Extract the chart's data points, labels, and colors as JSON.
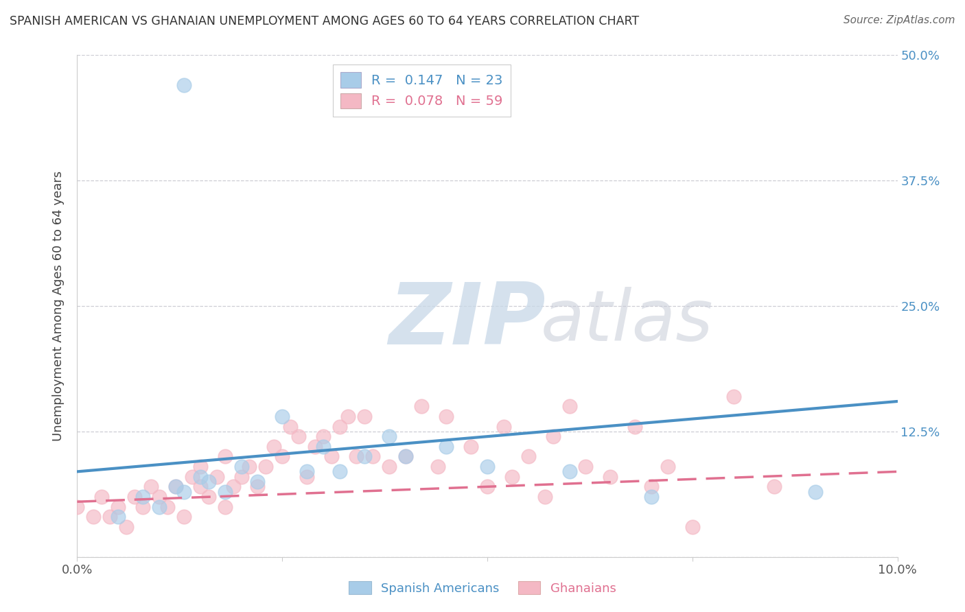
{
  "title": "SPANISH AMERICAN VS GHANAIAN UNEMPLOYMENT AMONG AGES 60 TO 64 YEARS CORRELATION CHART",
  "source": "Source: ZipAtlas.com",
  "ylabel": "Unemployment Among Ages 60 to 64 years",
  "xlim": [
    0.0,
    0.1
  ],
  "ylim": [
    0.0,
    0.5
  ],
  "xticks": [
    0.0,
    0.025,
    0.05,
    0.075,
    0.1
  ],
  "xticklabels": [
    "0.0%",
    "",
    "",
    "",
    "10.0%"
  ],
  "yticks": [
    0.0,
    0.125,
    0.25,
    0.375,
    0.5
  ],
  "yticklabels": [
    "",
    "12.5%",
    "25.0%",
    "37.5%",
    "50.0%"
  ],
  "spanish_R": 0.147,
  "spanish_N": 23,
  "ghanaian_R": 0.078,
  "ghanaian_N": 59,
  "spanish_color": "#a8cce8",
  "ghanaian_color": "#f4b8c4",
  "spanish_line_color": "#4a90c4",
  "ghanaian_line_color": "#e07090",
  "spanish_x": [
    0.005,
    0.008,
    0.01,
    0.012,
    0.013,
    0.015,
    0.016,
    0.018,
    0.02,
    0.022,
    0.025,
    0.028,
    0.03,
    0.035,
    0.038,
    0.04,
    0.045,
    0.05,
    0.06,
    0.07,
    0.09,
    0.013,
    0.032
  ],
  "spanish_y": [
    0.04,
    0.06,
    0.05,
    0.07,
    0.065,
    0.08,
    0.075,
    0.065,
    0.09,
    0.075,
    0.14,
    0.085,
    0.11,
    0.1,
    0.12,
    0.1,
    0.11,
    0.09,
    0.085,
    0.06,
    0.065,
    0.47,
    0.085
  ],
  "ghanaian_x": [
    0.0,
    0.002,
    0.003,
    0.004,
    0.005,
    0.006,
    0.007,
    0.008,
    0.009,
    0.01,
    0.011,
    0.012,
    0.013,
    0.014,
    0.015,
    0.015,
    0.016,
    0.017,
    0.018,
    0.018,
    0.019,
    0.02,
    0.021,
    0.022,
    0.023,
    0.024,
    0.025,
    0.026,
    0.027,
    0.028,
    0.029,
    0.03,
    0.031,
    0.032,
    0.033,
    0.034,
    0.035,
    0.036,
    0.038,
    0.04,
    0.042,
    0.044,
    0.045,
    0.048,
    0.05,
    0.052,
    0.053,
    0.055,
    0.057,
    0.058,
    0.06,
    0.062,
    0.065,
    0.068,
    0.07,
    0.072,
    0.075,
    0.08,
    0.085
  ],
  "ghanaian_y": [
    0.05,
    0.04,
    0.06,
    0.04,
    0.05,
    0.03,
    0.06,
    0.05,
    0.07,
    0.06,
    0.05,
    0.07,
    0.04,
    0.08,
    0.07,
    0.09,
    0.06,
    0.08,
    0.05,
    0.1,
    0.07,
    0.08,
    0.09,
    0.07,
    0.09,
    0.11,
    0.1,
    0.13,
    0.12,
    0.08,
    0.11,
    0.12,
    0.1,
    0.13,
    0.14,
    0.1,
    0.14,
    0.1,
    0.09,
    0.1,
    0.15,
    0.09,
    0.14,
    0.11,
    0.07,
    0.13,
    0.08,
    0.1,
    0.06,
    0.12,
    0.15,
    0.09,
    0.08,
    0.13,
    0.07,
    0.09,
    0.03,
    0.16,
    0.07
  ],
  "sp_line_x0": 0.0,
  "sp_line_y0": 0.085,
  "sp_line_x1": 0.1,
  "sp_line_y1": 0.155,
  "gh_line_x0": 0.0,
  "gh_line_y0": 0.055,
  "gh_line_x1": 0.1,
  "gh_line_y1": 0.085,
  "legend_label_sp": "R =  0.147   N = 23",
  "legend_label_gh": "R =  0.078   N = 59",
  "bottom_label_sp": "Spanish Americans",
  "bottom_label_gh": "Ghanaians"
}
